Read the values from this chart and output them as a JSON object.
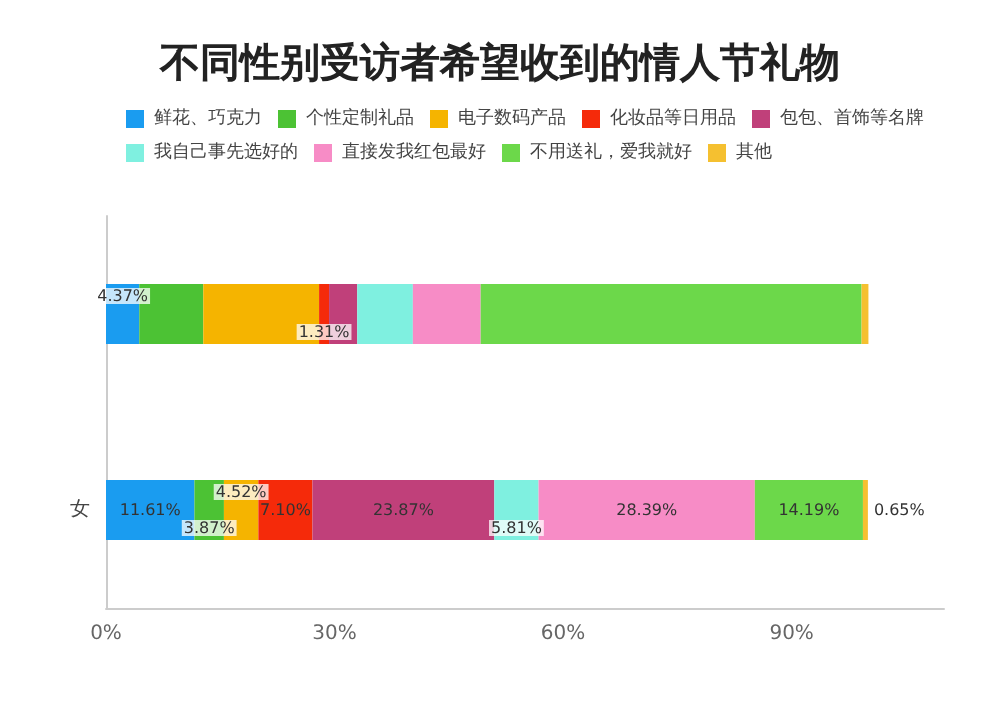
{
  "chart_data": {
    "type": "bar",
    "orientation": "horizontal",
    "stacked": true,
    "title": "不同性别受访者希望收到的情人节礼物",
    "categories": [
      null,
      "女"
    ],
    "series": [
      {
        "name": "鲜花、巧克力",
        "color": "#1a9cf0",
        "values": [
          4.37,
          11.61
        ],
        "value_labels": [
          "4.37%",
          "11.61%"
        ]
      },
      {
        "name": "个性定制礼品",
        "color": "#4cc234",
        "values": [
          8.4,
          3.87
        ],
        "value_labels": [
          null,
          "3.87%"
        ]
      },
      {
        "name": "电子数码产品",
        "color": "#f5b400",
        "values": [
          15.2,
          4.52
        ],
        "value_labels": [
          null,
          "4.52%"
        ]
      },
      {
        "name": "化妆品等日用品",
        "color": "#f52a0a",
        "values": [
          1.31,
          7.1
        ],
        "value_labels": [
          "1.31%",
          "7.10%"
        ]
      },
      {
        "name": "包包、首饰等名牌",
        "color": "#c0407a",
        "values": [
          3.7,
          23.87
        ],
        "value_labels": [
          null,
          "23.87%"
        ]
      },
      {
        "name": "我自己事先选好的",
        "color": "#7ff0e0",
        "values": [
          7.3,
          5.81
        ],
        "value_labels": [
          null,
          "5.81%"
        ]
      },
      {
        "name": "直接发我红包最好",
        "color": "#f78cc6",
        "values": [
          8.9,
          28.39
        ],
        "value_labels": [
          null,
          "28.39%"
        ]
      },
      {
        "name": "不用送礼，爱我就好",
        "color": "#6cd84a",
        "values": [
          50,
          14.19
        ],
        "value_labels": [
          null,
          "14.19%"
        ]
      },
      {
        "name": "其他",
        "color": "#f5c030",
        "values": [
          0.9,
          0.65
        ],
        "value_labels": [
          null,
          "0.65%"
        ]
      }
    ],
    "xlim": [
      0,
      110
    ],
    "xticks": [
      {
        "value": 0,
        "label": "0%"
      },
      {
        "value": 30,
        "label": "30%"
      },
      {
        "value": 60,
        "label": "60%"
      },
      {
        "value": 90,
        "label": "90%"
      }
    ],
    "legend": "top",
    "grid": false
  }
}
